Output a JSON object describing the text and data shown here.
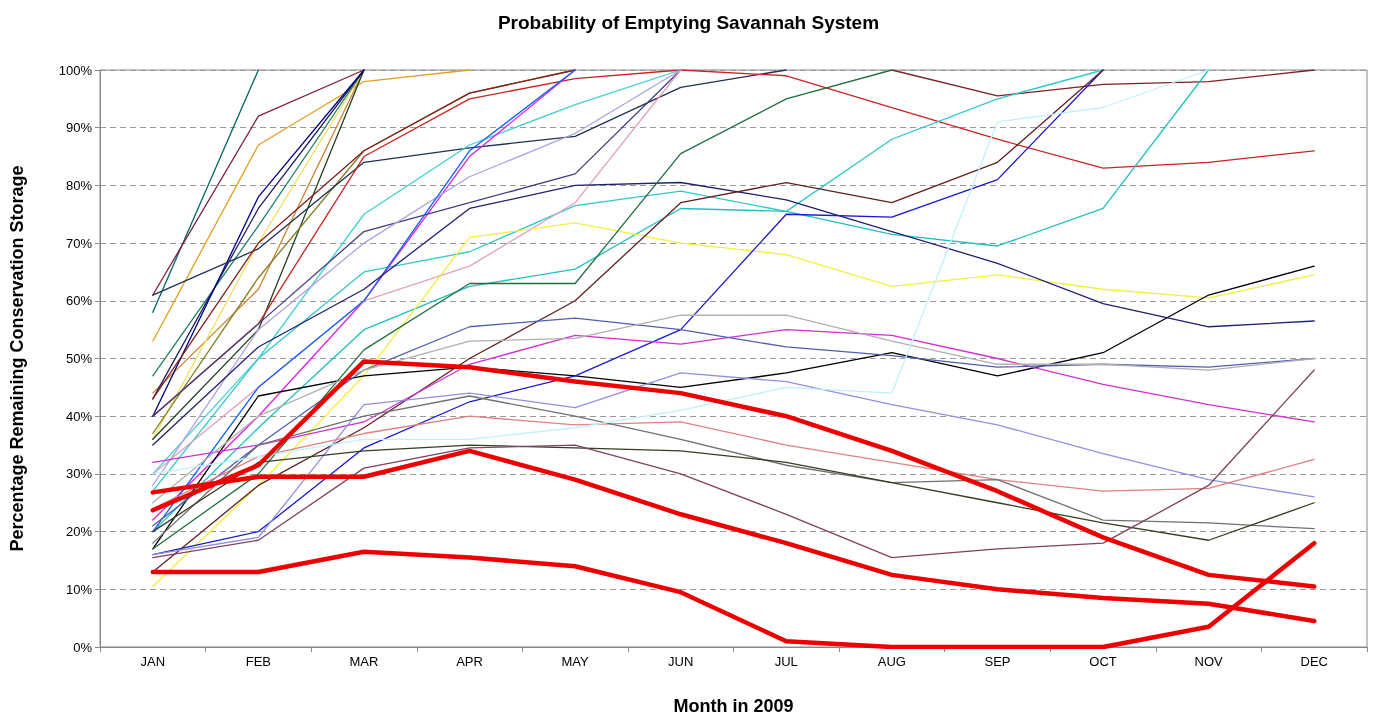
{
  "chart_data": {
    "type": "line",
    "title": "Probability of Emptying Savannah System",
    "xlabel": "Month in 2009",
    "ylabel": "Percentage Remaining Conservation Storage",
    "categories": [
      "JAN",
      "FEB",
      "MAR",
      "APR",
      "MAY",
      "JUN",
      "JUL",
      "AUG",
      "SEP",
      "OCT",
      "NOV",
      "DEC"
    ],
    "ylim": [
      0,
      100
    ],
    "yticks": [
      {
        "value": 0,
        "label": "0%"
      },
      {
        "value": 10,
        "label": "10%"
      },
      {
        "value": 20,
        "label": "20%"
      },
      {
        "value": 30,
        "label": "30%"
      },
      {
        "value": 40,
        "label": "40%"
      },
      {
        "value": 50,
        "label": "50%"
      },
      {
        "value": 60,
        "label": "60%"
      },
      {
        "value": 70,
        "label": "70%"
      },
      {
        "value": 80,
        "label": "80%"
      },
      {
        "value": 90,
        "label": "90%"
      },
      {
        "value": 100,
        "label": "100%"
      }
    ],
    "grid": "y",
    "marker": "none",
    "line_style": "solid",
    "series": [
      {
        "color": "#006666",
        "values": [
          58,
          100,
          null,
          null,
          null,
          null,
          null,
          null,
          null,
          null,
          null,
          null
        ]
      },
      {
        "color": "#802040",
        "values": [
          61,
          92,
          100,
          null,
          null,
          null,
          null,
          null,
          null,
          null,
          null,
          null
        ]
      },
      {
        "color": "#e0a020",
        "values": [
          53,
          87,
          98,
          100,
          null,
          null,
          null,
          null,
          null,
          null,
          null,
          null
        ]
      },
      {
        "color": "#d08030",
        "values": [
          44,
          62,
          100,
          null,
          null,
          null,
          null,
          null,
          null,
          null,
          null,
          null
        ]
      },
      {
        "color": "#f0e060",
        "values": [
          36,
          70,
          100,
          null,
          null,
          null,
          null,
          null,
          null,
          null,
          null,
          null
        ]
      },
      {
        "color": "#208060",
        "values": [
          47,
          73,
          100,
          null,
          null,
          null,
          null,
          null,
          null,
          null,
          null,
          null
        ]
      },
      {
        "color": "#204020",
        "values": [
          36,
          55,
          100,
          null,
          null,
          null,
          null,
          null,
          null,
          null,
          null,
          null
        ]
      },
      {
        "color": "#202060",
        "values": [
          43,
          76,
          100,
          null,
          null,
          null,
          null,
          null,
          null,
          null,
          null,
          null
        ]
      },
      {
        "color": "#000080",
        "values": [
          40,
          78,
          100,
          null,
          null,
          null,
          null,
          null,
          null,
          null,
          null,
          null
        ]
      },
      {
        "color": "#808020",
        "values": [
          37,
          64,
          86,
          96,
          100,
          null,
          null,
          null,
          null,
          null,
          null,
          null
        ]
      },
      {
        "color": "#203050",
        "values": [
          61,
          69,
          84,
          86.5,
          88.5,
          97,
          100,
          null,
          null,
          null,
          null,
          null
        ]
      },
      {
        "color": "#cc2222",
        "values": [
          40,
          56,
          85,
          95,
          98.5,
          100,
          99,
          93.5,
          88,
          83,
          84,
          86
        ]
      },
      {
        "color": "#802020",
        "values": [
          43,
          70,
          86,
          96,
          100,
          null,
          null,
          100,
          95.5,
          97.5,
          98,
          100
        ]
      },
      {
        "color": "#40d0d0",
        "values": [
          30,
          50,
          75,
          87,
          94,
          100,
          null,
          null,
          null,
          null,
          null,
          null
        ]
      },
      {
        "color": "#30c8c8",
        "values": [
          27,
          50,
          65,
          68.5,
          76.5,
          79,
          75.5,
          88,
          95,
          100,
          null,
          null
        ]
      },
      {
        "color": "#20c0c0",
        "values": [
          20,
          38,
          55,
          62.5,
          65.5,
          76,
          75.5,
          71.5,
          69.5,
          76,
          100,
          null
        ]
      },
      {
        "color": "#e020e0",
        "values": [
          22,
          40,
          60,
          85,
          100,
          null,
          null,
          null,
          null,
          null,
          null,
          null
        ]
      },
      {
        "color": "#404080",
        "values": [
          40,
          56,
          72,
          77,
          82,
          100,
          null,
          null,
          null,
          null,
          null,
          null
        ]
      },
      {
        "color": "#e0a0c0",
        "values": [
          30,
          45,
          60,
          66,
          77,
          100,
          null,
          null,
          null,
          null,
          null,
          null
        ]
      },
      {
        "color": "#b0a0e0",
        "values": [
          28,
          55,
          70,
          81.5,
          89,
          100,
          null,
          null,
          null,
          null,
          null,
          null
        ]
      },
      {
        "color": "#1060ff",
        "values": [
          20,
          45,
          60,
          86,
          100,
          null,
          null,
          null,
          null,
          null,
          null,
          null
        ]
      },
      {
        "color": "#f0f040",
        "values": [
          10.5,
          28,
          47,
          71,
          73.5,
          70,
          68,
          62.5,
          64.5,
          62,
          60.5,
          64.5
        ]
      },
      {
        "color": "#000000",
        "values": [
          17,
          43.5,
          47,
          48.5,
          47,
          45,
          47.5,
          51,
          47,
          51,
          61,
          66
        ]
      },
      {
        "color": "#202070",
        "values": [
          35,
          52,
          62,
          76,
          80,
          80.5,
          77.5,
          72,
          66.5,
          59.5,
          55.5,
          56.5
        ]
      },
      {
        "color": "#1818d0",
        "values": [
          16,
          20,
          34.5,
          42.5,
          47,
          55,
          75,
          74.5,
          81,
          100,
          null,
          null
        ]
      },
      {
        "color": "#602020",
        "values": [
          13,
          28,
          38,
          50,
          60,
          77,
          80.5,
          77,
          84,
          100,
          null,
          null
        ]
      },
      {
        "color": "#207040",
        "values": [
          17,
          30,
          51.5,
          63,
          63,
          85.5,
          95,
          100,
          null,
          null,
          null,
          null
        ]
      },
      {
        "color": "#d030d0",
        "values": [
          32,
          35,
          39,
          49,
          54,
          52.5,
          55,
          54,
          50,
          45.5,
          42,
          39
        ]
      },
      {
        "color": "#5060b0",
        "values": [
          21,
          35,
          48,
          55.5,
          57,
          55,
          52,
          50.5,
          48.5,
          49,
          48.5,
          50
        ]
      },
      {
        "color": "#b0b0b0",
        "values": [
          25,
          40,
          48,
          53,
          53.5,
          57.5,
          57.5,
          53,
          49,
          49,
          48,
          50
        ]
      },
      {
        "color": "#9090e0",
        "values": [
          16,
          19,
          42,
          44,
          41.5,
          47.5,
          46,
          42,
          38.5,
          33.5,
          29,
          26
        ]
      },
      {
        "color": "#e08080",
        "values": [
          24,
          33,
          37,
          40,
          38.5,
          39,
          35,
          32,
          29,
          27,
          27.5,
          32.5
        ]
      },
      {
        "color": "#707070",
        "values": [
          18,
          35,
          40,
          43.5,
          40,
          36,
          31.5,
          28.5,
          29,
          22,
          21.5,
          20.5
        ]
      },
      {
        "color": "#304020",
        "values": [
          20,
          32,
          34,
          35,
          34.5,
          34,
          32,
          28.5,
          25,
          21.5,
          18.5,
          25
        ]
      },
      {
        "color": "#804060",
        "values": [
          15.5,
          18.5,
          31,
          34.5,
          35,
          30,
          23,
          15.5,
          17,
          18,
          28,
          48
        ]
      },
      {
        "color": "#c0f0ff",
        "values": [
          30,
          33,
          36,
          36,
          38,
          41,
          45,
          44,
          91,
          93.5,
          100,
          null
        ]
      },
      {
        "color": "#ee0000",
        "values": [
          23.7,
          31.5,
          49.5,
          48.5,
          46,
          44,
          40,
          34,
          27,
          19,
          12.5,
          10.5
        ]
      },
      {
        "color": "#ee0000",
        "values": [
          26.8,
          29.5,
          29.5,
          34,
          29,
          23,
          18,
          12.5,
          10,
          8.5,
          7.5,
          4.5
        ]
      },
      {
        "color": "#ee0000",
        "values": [
          13,
          13,
          16.5,
          15.5,
          14,
          9.5,
          1,
          0,
          0,
          0,
          3.5,
          18
        ]
      }
    ]
  }
}
